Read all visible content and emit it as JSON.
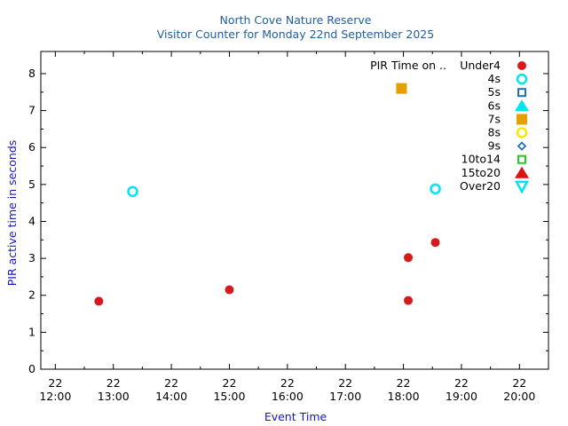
{
  "chart_data": {
    "type": "scatter",
    "title": "North Cove Nature Reserve",
    "subtitle": "Visitor Counter for Monday 22nd September 2025",
    "xlabel": "Event Time",
    "ylabel": "PIR active time in seconds",
    "xlim": [
      "22 11:45",
      "22 20:30"
    ],
    "ylim": [
      0,
      8.6
    ],
    "x_ticks": [
      {
        "day": "22",
        "time": "12:00",
        "value": 12
      },
      {
        "day": "22",
        "time": "13:00",
        "value": 13
      },
      {
        "day": "22",
        "time": "14:00",
        "value": 14
      },
      {
        "day": "22",
        "time": "15:00",
        "value": 15
      },
      {
        "day": "22",
        "time": "16:00",
        "value": 16
      },
      {
        "day": "22",
        "time": "17:00",
        "value": 17
      },
      {
        "day": "22",
        "time": "18:00",
        "value": 18
      },
      {
        "day": "22",
        "time": "19:00",
        "value": 19
      },
      {
        "day": "22",
        "time": "20:00",
        "value": 20
      }
    ],
    "y_ticks": [
      0,
      1,
      2,
      3,
      4,
      5,
      6,
      7,
      8
    ],
    "grid": false,
    "legend_position": "top-right",
    "legend_title": "PIR Time on ..",
    "series": [
      {
        "name": "Under4",
        "marker": "filled-circle",
        "color": "#d7191c",
        "points": [
          {
            "x": "22 12:45",
            "y": 1.84
          },
          {
            "x": "22 15:00",
            "y": 2.15
          },
          {
            "x": "22 18:05",
            "y": 1.86
          },
          {
            "x": "22 18:05",
            "y": 3.02
          },
          {
            "x": "22 18:33",
            "y": 3.43
          }
        ]
      },
      {
        "name": "4s",
        "marker": "open-circle",
        "color": "#00e5ee",
        "points": [
          {
            "x": "22 13:20",
            "y": 4.81
          },
          {
            "x": "22 18:33",
            "y": 4.88
          }
        ]
      },
      {
        "name": "5s",
        "marker": "open-square",
        "color": "#1f6fbf",
        "points": []
      },
      {
        "name": "6s",
        "marker": "filled-triangle-up",
        "color": "#00e5ee",
        "points": []
      },
      {
        "name": "7s",
        "marker": "filled-square",
        "color": "#e69f00",
        "points": [
          {
            "x": "22 17:58",
            "y": 7.6
          }
        ]
      },
      {
        "name": "8s",
        "marker": "open-circle",
        "color": "#ffe600",
        "points": []
      },
      {
        "name": "9s",
        "marker": "open-diamond",
        "color": "#1f6fbf",
        "points": []
      },
      {
        "name": "10to14",
        "marker": "open-square",
        "color": "#22cc22",
        "points": []
      },
      {
        "name": "15to20",
        "marker": "filled-triangle-up",
        "color": "#e01010",
        "points": []
      },
      {
        "name": "Over20",
        "marker": "open-triangle-down",
        "color": "#00e5ee",
        "points": []
      }
    ]
  }
}
